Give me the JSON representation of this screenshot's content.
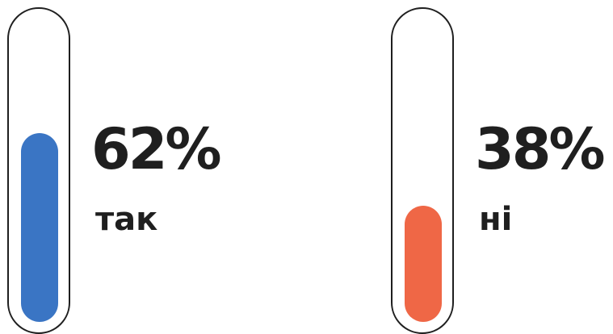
{
  "chart_data": {
    "type": "bar",
    "categories": [
      "так",
      "ні"
    ],
    "values": [
      62,
      38
    ],
    "value_labels": [
      "62%",
      "38%"
    ],
    "colors": [
      "#3a75c4",
      "#ef6746"
    ],
    "ylim": [
      0,
      100
    ]
  }
}
